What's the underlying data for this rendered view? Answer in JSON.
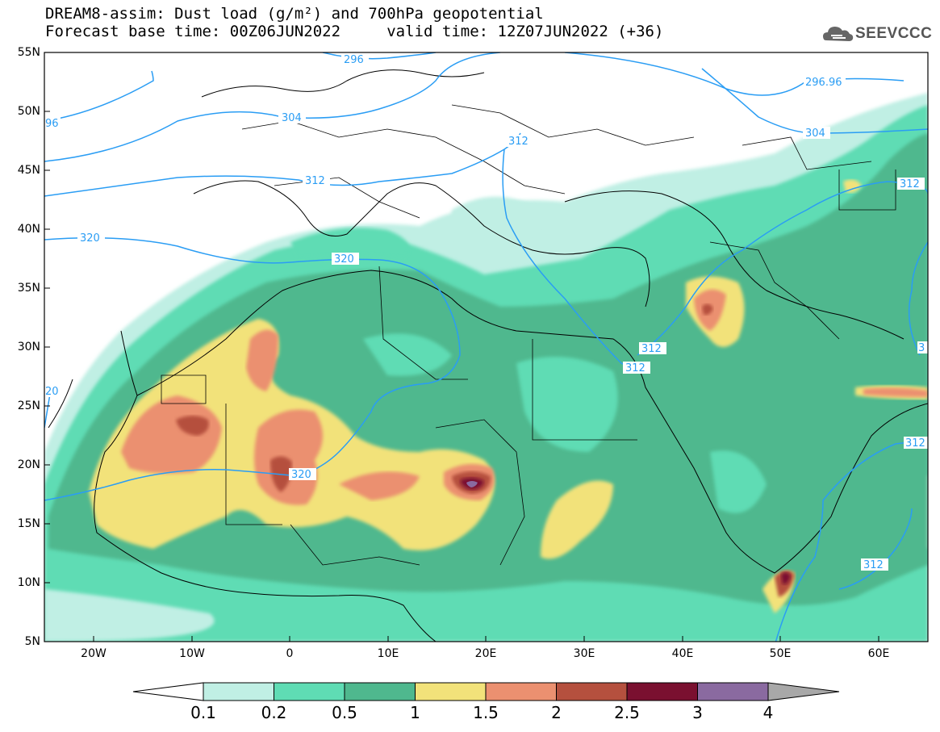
{
  "title": {
    "line1": "DREAM8-assim: Dust load (g/m²) and 700hPa geopotential",
    "line2": "Forecast base time: 00Z06JUN2022     valid time: 12Z07JUN2022 (+36)"
  },
  "logo": {
    "text": "SEEVCCC",
    "icon": "cloud-icon"
  },
  "axes": {
    "lat_labels": [
      "55N",
      "50N",
      "45N",
      "40N",
      "35N",
      "30N",
      "25N",
      "20N",
      "15N",
      "10N",
      "5N"
    ],
    "lon_labels": [
      "20W",
      "10W",
      "0",
      "10E",
      "20E",
      "30E",
      "40E",
      "50E",
      "60E"
    ]
  },
  "contour_labels": {
    "l296a": "296",
    "l296b": "296.96",
    "l96": "96",
    "l304a": "304",
    "l304b": "304",
    "l312a": "312",
    "l312b": "312",
    "l312c": "312",
    "l312d": "312",
    "l312e": "312",
    "l312f": "312",
    "l320a": "320",
    "l320b": "320",
    "l320c": "320",
    "l20": "20",
    "l3": "3"
  },
  "colorbar": {
    "labels": [
      "0.1",
      "0.2",
      "0.5",
      "1",
      "1.5",
      "2",
      "2.5",
      "3",
      "4"
    ],
    "colors": [
      "#c0efe4",
      "#5fdcb4",
      "#4fb88e",
      "#f2e27a",
      "#eb9070",
      "#b5503e",
      "#7a1030",
      "#8a6aa0",
      "#a8a8a8"
    ],
    "colors_note_under": "#ffffff"
  }
}
